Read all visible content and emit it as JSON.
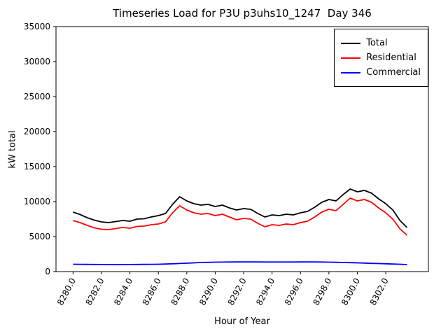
{
  "title": "Timeseries Load for P3U p3uhs10_1247  Day 346",
  "axes": {
    "xlabel": "Hour of Year",
    "ylabel": "kW total"
  },
  "legend": {
    "position": "upper right",
    "entries": [
      {
        "label": "Total",
        "color": "#000000"
      },
      {
        "label": "Residential",
        "color": "#ff0000"
      },
      {
        "label": "Commercial",
        "color": "#0000ff"
      }
    ]
  },
  "chart_data": {
    "type": "line",
    "title": "Timeseries Load for P3U p3uhs10_1247  Day 346",
    "xlabel": "Hour of Year",
    "ylabel": "kW total",
    "grid": false,
    "legend_position": "upper right",
    "xlim": [
      8278.8,
      8305.0
    ],
    "ylim": [
      0,
      35000
    ],
    "xticks": [
      8280,
      8282,
      8284,
      8286,
      8288,
      8290,
      8292,
      8294,
      8296,
      8298,
      8300,
      8302
    ],
    "yticks": [
      0,
      5000,
      10000,
      15000,
      20000,
      25000,
      30000,
      35000
    ],
    "x": [
      8280.0,
      8280.5,
      8281.0,
      8281.5,
      8282.0,
      8282.5,
      8283.0,
      8283.5,
      8284.0,
      8284.5,
      8285.0,
      8285.5,
      8286.0,
      8286.5,
      8287.0,
      8287.5,
      8288.0,
      8288.5,
      8289.0,
      8289.5,
      8290.0,
      8290.5,
      8291.0,
      8291.5,
      8292.0,
      8292.5,
      8293.0,
      8293.5,
      8294.0,
      8294.5,
      8295.0,
      8295.5,
      8296.0,
      8296.5,
      8297.0,
      8297.5,
      8298.0,
      8298.5,
      8299.0,
      8299.5,
      8300.0,
      8300.5,
      8301.0,
      8301.5,
      8302.0,
      8302.5,
      8303.0,
      8303.5
    ],
    "series": [
      {
        "name": "Total",
        "color": "#000000",
        "values": [
          8500,
          8150,
          7700,
          7350,
          7100,
          7000,
          7150,
          7300,
          7200,
          7500,
          7550,
          7800,
          8000,
          8300,
          9600,
          10700,
          10100,
          9700,
          9500,
          9600,
          9300,
          9500,
          9100,
          8800,
          9000,
          8900,
          8300,
          7800,
          8100,
          8000,
          8200,
          8100,
          8400,
          8600,
          9200,
          9900,
          10300,
          10100,
          11000,
          11800,
          11400,
          11600,
          11200,
          10400,
          9700,
          8800,
          7300,
          6300
        ]
      },
      {
        "name": "Residential",
        "color": "#ff0000",
        "values": [
          7300,
          7000,
          6600,
          6250,
          6050,
          6000,
          6150,
          6300,
          6200,
          6450,
          6500,
          6700,
          6800,
          7100,
          8400,
          9400,
          8800,
          8400,
          8200,
          8300,
          8000,
          8200,
          7800,
          7400,
          7600,
          7500,
          6900,
          6400,
          6700,
          6600,
          6800,
          6700,
          7000,
          7200,
          7800,
          8500,
          8900,
          8700,
          9600,
          10500,
          10100,
          10300,
          9900,
          9100,
          8400,
          7500,
          6100,
          5200
        ]
      },
      {
        "name": "Commercial",
        "color": "#0000ff",
        "values": [
          1050,
          1040,
          1030,
          1020,
          1010,
          1000,
          1000,
          1000,
          1010,
          1020,
          1030,
          1040,
          1050,
          1080,
          1120,
          1160,
          1200,
          1250,
          1300,
          1320,
          1350,
          1360,
          1370,
          1380,
          1380,
          1380,
          1380,
          1370,
          1370,
          1370,
          1370,
          1370,
          1380,
          1380,
          1380,
          1370,
          1350,
          1330,
          1300,
          1280,
          1250,
          1220,
          1180,
          1150,
          1120,
          1080,
          1050,
          1000
        ]
      }
    ]
  }
}
